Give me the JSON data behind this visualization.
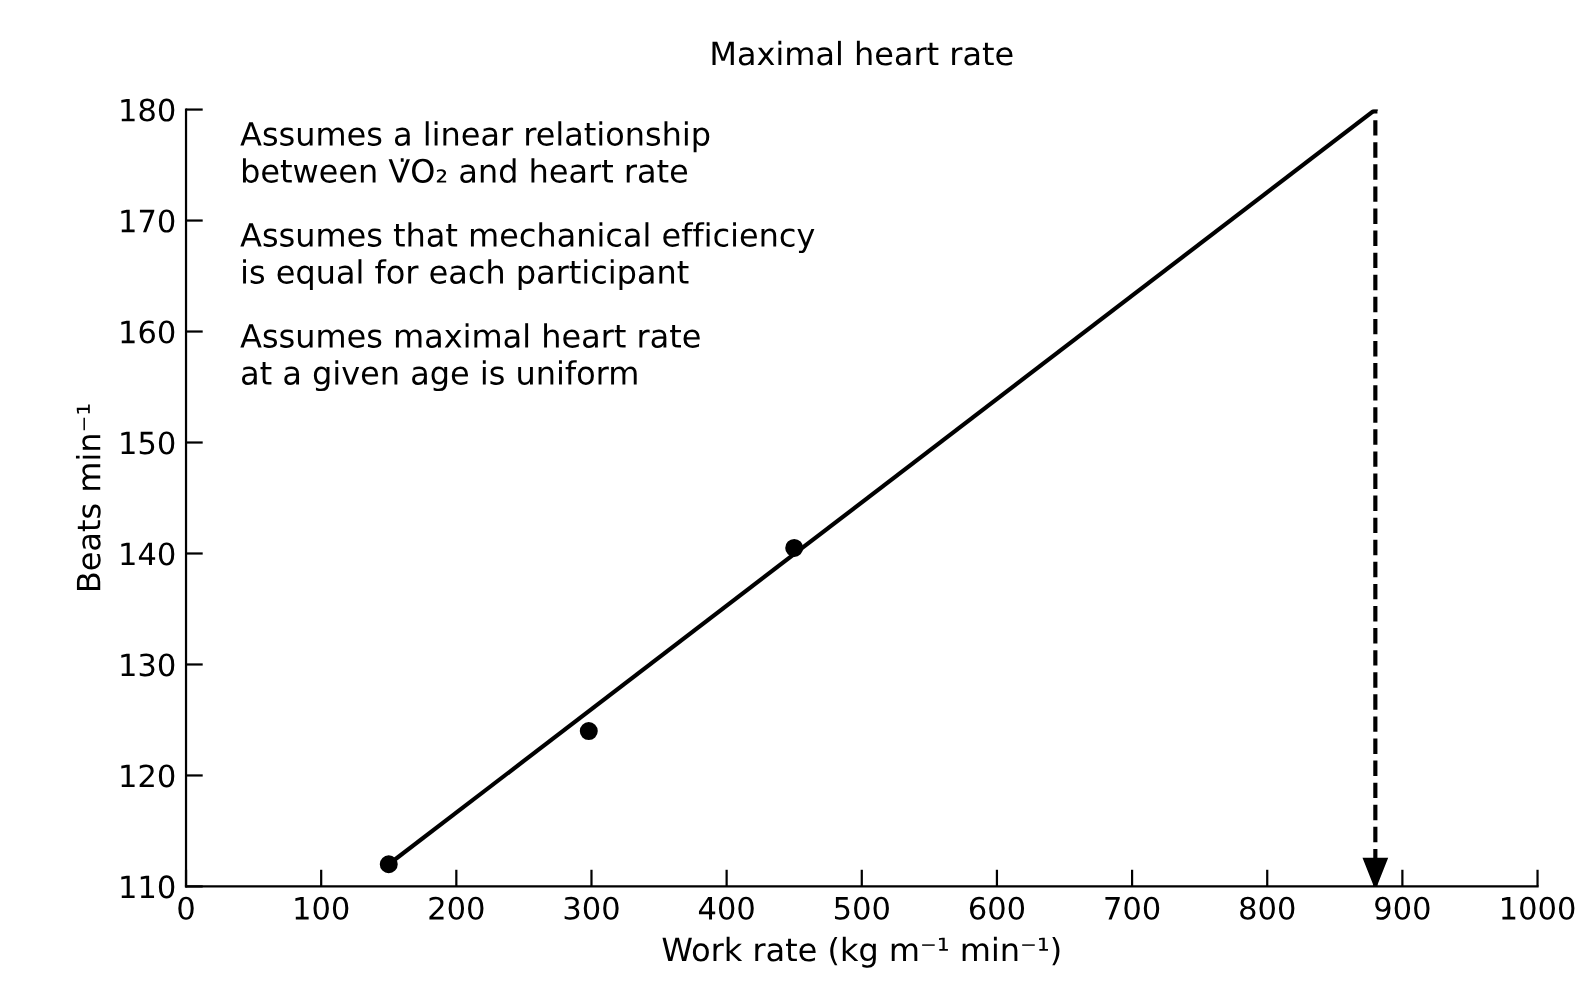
{
  "chart_data": {
    "type": "scatter",
    "title": "Maximal heart rate",
    "xlabel": "Work rate (kg m⁻¹ min⁻¹)",
    "ylabel": "Beats min⁻¹",
    "annotations": [
      "Assumes a linear relationship\nbetween V̇O₂ and heart rate",
      "Assumes that mechanical efficiency\nis equal for each participant",
      "Assumes maximal heart rate\nat a given age is uniform"
    ],
    "series": [
      {
        "color": "#000000",
        "marker": "circle",
        "x": [
          150,
          298,
          450
        ],
        "values": [
          112,
          124,
          140.5
        ]
      },
      {
        "type": "line",
        "color": "#000000",
        "marker": "none",
        "line_style": "solid",
        "x": [
          150,
          880
        ],
        "values": [
          112,
          180
        ]
      }
    ],
    "ref_lines": [
      {
        "axis": "x",
        "value": 880,
        "color": "#000000",
        "line_style": "dashed"
      }
    ],
    "xlim": [
      0,
      1000
    ],
    "xticks": [
      0,
      100,
      200,
      300,
      400,
      500,
      600,
      700,
      800,
      900,
      1000
    ],
    "ylim": [
      110,
      180
    ],
    "yticks": [
      110,
      120,
      130,
      140,
      150,
      160,
      170,
      180
    ],
    "grid": false
  }
}
